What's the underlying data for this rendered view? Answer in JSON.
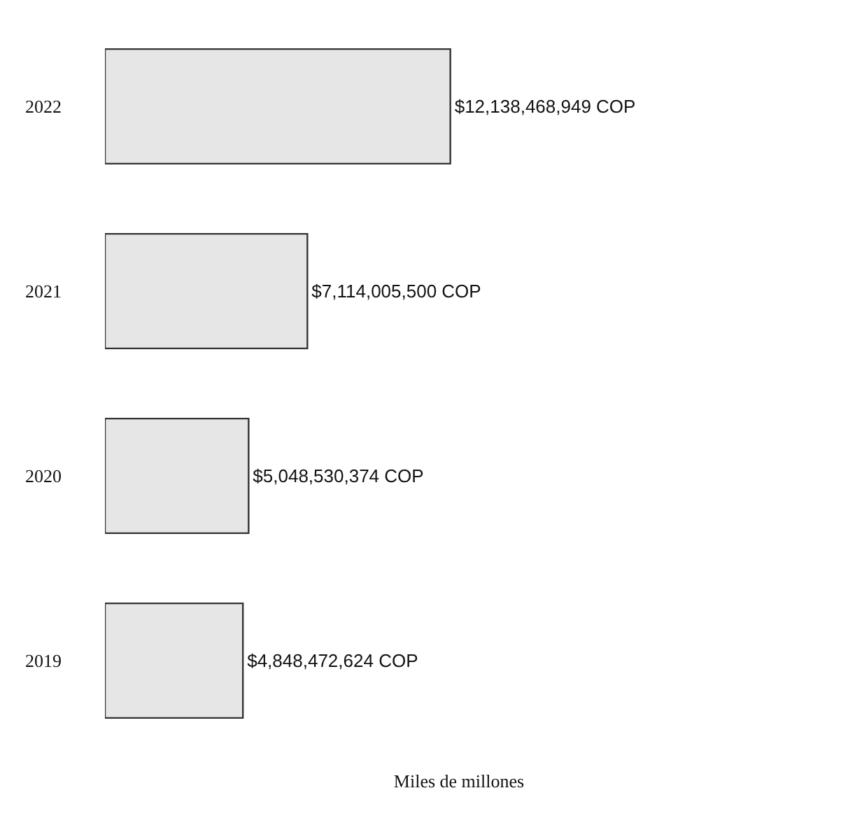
{
  "chart_data": {
    "type": "bar",
    "orientation": "horizontal",
    "xlabel": "Miles de millones",
    "categories": [
      "2022",
      "2021",
      "2020",
      "2019"
    ],
    "values": [
      12138468949,
      7114005500,
      5048530374,
      4848472624
    ],
    "value_labels": [
      "$12,138,468,949 COP",
      "$7,114,005,500 COP",
      "$5,048,530,374 COP",
      "$4,848,472,624 COP"
    ],
    "color": "#e6e6e6",
    "legend": false
  }
}
